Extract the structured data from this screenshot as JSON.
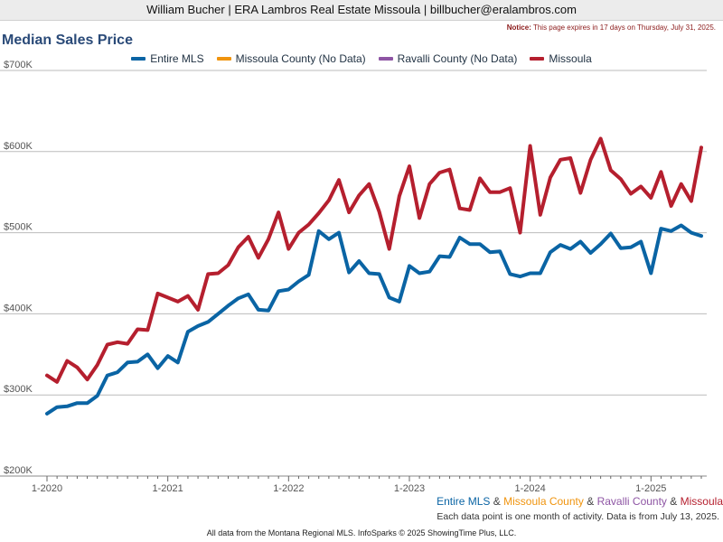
{
  "header": {
    "agent_line": "William Bucher | ERA Lambros Real Estate Missoula | billbucher@eralambros.com",
    "notice_label": "Notice:",
    "notice_text": "This page expires in 17 days on Thursday, July 31, 2025."
  },
  "colors": {
    "entire": "#0a64a4",
    "missoula_county": "#f0940e",
    "ravalli_county": "#8e55a4",
    "missoula": "#b51f2e",
    "grid": "#bbbbbb"
  },
  "series_combo": {
    "entire": "Entire MLS",
    "missoula_county": "Missoula County",
    "ravalli_county": "Ravalli County",
    "missoula": "Missoula",
    "amp": "&"
  },
  "caption": "Each data point is one month of activity. Data is from July 13, 2025.",
  "footer": "All data from the Montana Regional MLS. InfoSparks © 2025 ShowingTime Plus, LLC.",
  "chart_data": {
    "type": "line",
    "title": "Median Sales Price",
    "ylim": [
      200000,
      700000
    ],
    "y_ticks": [
      200000,
      300000,
      400000,
      500000,
      600000,
      700000
    ],
    "y_tick_labels": [
      "$200K",
      "$300K",
      "$400K",
      "$500K",
      "$600K",
      "$700K"
    ],
    "x_tick_labels": [
      "1-2020",
      "1-2021",
      "1-2022",
      "1-2023",
      "1-2024",
      "1-2025"
    ],
    "x_tick_index": [
      0,
      12,
      24,
      36,
      48,
      60
    ],
    "x_count": 66,
    "x_start": "2020-01",
    "legend_position": "top",
    "grid": true,
    "series": [
      {
        "name": "Entire MLS",
        "color_key": "entire",
        "values": [
          277000,
          285000,
          286000,
          290000,
          290000,
          299000,
          324000,
          328000,
          340000,
          341000,
          350000,
          333000,
          348000,
          340000,
          378000,
          385000,
          390000,
          400000,
          410000,
          419000,
          424000,
          405000,
          404000,
          428000,
          430000,
          440000,
          448000,
          502000,
          492000,
          500000,
          451000,
          465000,
          450000,
          449000,
          420000,
          415000,
          459000,
          450000,
          452000,
          471000,
          470000,
          494000,
          486000,
          486000,
          476000,
          477000,
          449000,
          446000,
          450000,
          450000,
          476000,
          485000,
          480000,
          489000,
          475000,
          486000,
          499000,
          481000,
          482000,
          489000,
          450000,
          505000,
          502000,
          509000,
          500000,
          496000
        ]
      },
      {
        "name": "Missoula County (No Data)",
        "color_key": "missoula_county",
        "values": []
      },
      {
        "name": "Ravalli County (No Data)",
        "color_key": "ravalli_county",
        "values": []
      },
      {
        "name": "Missoula",
        "color_key": "missoula",
        "values": [
          324000,
          316000,
          342000,
          334000,
          319000,
          337000,
          362000,
          365000,
          363000,
          381000,
          380000,
          425000,
          420000,
          415000,
          422000,
          405000,
          449000,
          450000,
          460000,
          482000,
          495000,
          469000,
          492000,
          525000,
          480000,
          500000,
          510000,
          524000,
          540000,
          565000,
          525000,
          546000,
          560000,
          526000,
          480000,
          545000,
          582000,
          518000,
          560000,
          574000,
          578000,
          530000,
          528000,
          567000,
          550000,
          550000,
          555000,
          500000,
          607000,
          522000,
          568000,
          590000,
          592000,
          549000,
          590000,
          616000,
          577000,
          566000,
          548000,
          557000,
          543000,
          575000,
          533000,
          560000,
          539000,
          605000
        ]
      }
    ]
  }
}
